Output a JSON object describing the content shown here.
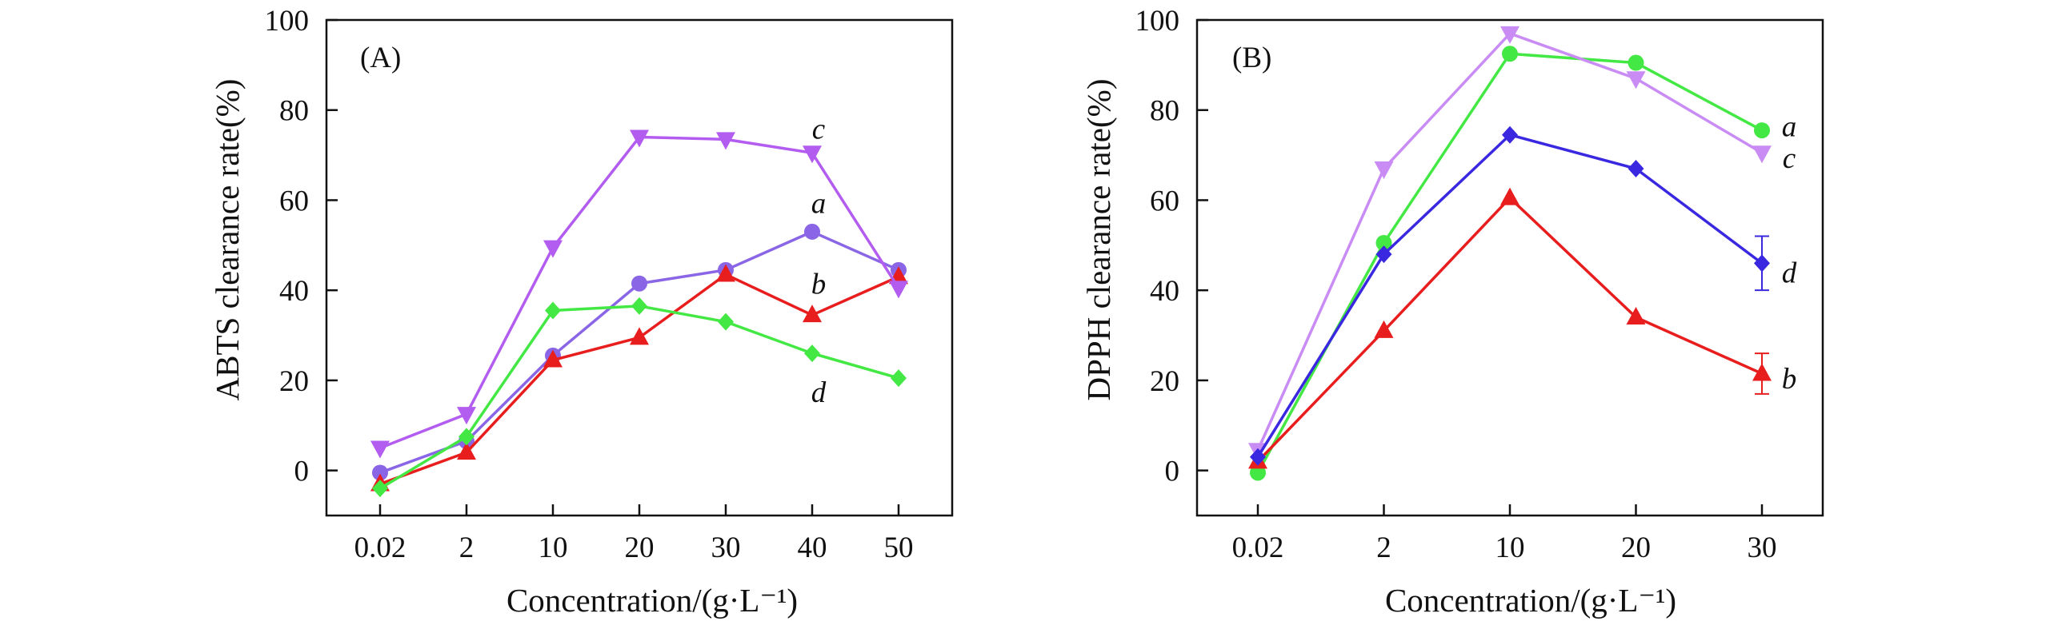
{
  "colors": {
    "axis": "#111111",
    "a": "#44e844",
    "b": "#e81e1e",
    "c_A": "#b35cf0",
    "a_A": "#8a66e6",
    "c_B": "#c98cf5",
    "d_B": "#3a28e0"
  },
  "chart_data": [
    {
      "type": "line",
      "panel_label": "(A)",
      "xlabel": "Concentration/(g·L⁻¹)",
      "ylabel": "ABTS clearance rate(%)",
      "categories": [
        "0.02",
        "2",
        "10",
        "20",
        "30",
        "40",
        "50"
      ],
      "ylim": [
        -10,
        100
      ],
      "yticks": [
        0,
        20,
        40,
        60,
        80,
        100
      ],
      "series": [
        {
          "name": "a",
          "marker": "circle",
          "color": "#8a66e6",
          "values": [
            -0.5,
            6.5,
            25.5,
            41.5,
            44.5,
            53,
            44.5
          ]
        },
        {
          "name": "b",
          "marker": "triangle-up",
          "color": "#e81e1e",
          "values": [
            -3,
            4,
            24.5,
            29.5,
            43.5,
            34.5,
            43
          ]
        },
        {
          "name": "c",
          "marker": "triangle-down",
          "color": "#b35cf0",
          "values": [
            5,
            12.5,
            49.5,
            74,
            73.5,
            70.5,
            40.5
          ]
        },
        {
          "name": "d",
          "marker": "diamond",
          "color": "#44e844",
          "values": [
            -4,
            7.5,
            35.5,
            36.5,
            33,
            26,
            20.5
          ]
        }
      ],
      "annotations": [
        {
          "text": "c",
          "x_category": "40",
          "y": 76
        },
        {
          "text": "a",
          "x_category": "40",
          "y": 59.5
        },
        {
          "text": "b",
          "x_category": "40",
          "y": 41.5
        },
        {
          "text": "d",
          "x_category": "40",
          "y": 17.5
        }
      ]
    },
    {
      "type": "line",
      "panel_label": "(B)",
      "xlabel": "Concentration/(g·L⁻¹)",
      "ylabel": "DPPH clearance rate(%)",
      "categories": [
        "0.02",
        "2",
        "10",
        "20",
        "30"
      ],
      "ylim": [
        -10,
        100
      ],
      "yticks": [
        0,
        20,
        40,
        60,
        80,
        100
      ],
      "series": [
        {
          "name": "a",
          "marker": "circle",
          "color": "#44e844",
          "values": [
            -0.5,
            50.5,
            92.5,
            90.5,
            75.5
          ]
        },
        {
          "name": "b",
          "marker": "triangle-up",
          "color": "#e81e1e",
          "values": [
            2,
            31,
            60.5,
            34,
            21.5
          ],
          "error_bars": [
            null,
            null,
            null,
            null,
            4.5
          ]
        },
        {
          "name": "c",
          "marker": "triangle-down",
          "color": "#c98cf5",
          "values": [
            4.5,
            67,
            97,
            87,
            70.5
          ]
        },
        {
          "name": "d",
          "marker": "diamond",
          "color": "#3a28e0",
          "values": [
            3,
            48,
            74.5,
            67,
            46
          ],
          "error_bars": [
            null,
            null,
            null,
            null,
            6
          ]
        }
      ],
      "annotations": [
        {
          "text": "a",
          "x_category": "30",
          "y": 76.5
        },
        {
          "text": "c",
          "x_category": "30",
          "y": 69.5
        },
        {
          "text": "d",
          "x_category": "30",
          "y": 44
        },
        {
          "text": "b",
          "x_category": "30",
          "y": 20.5
        }
      ]
    }
  ]
}
